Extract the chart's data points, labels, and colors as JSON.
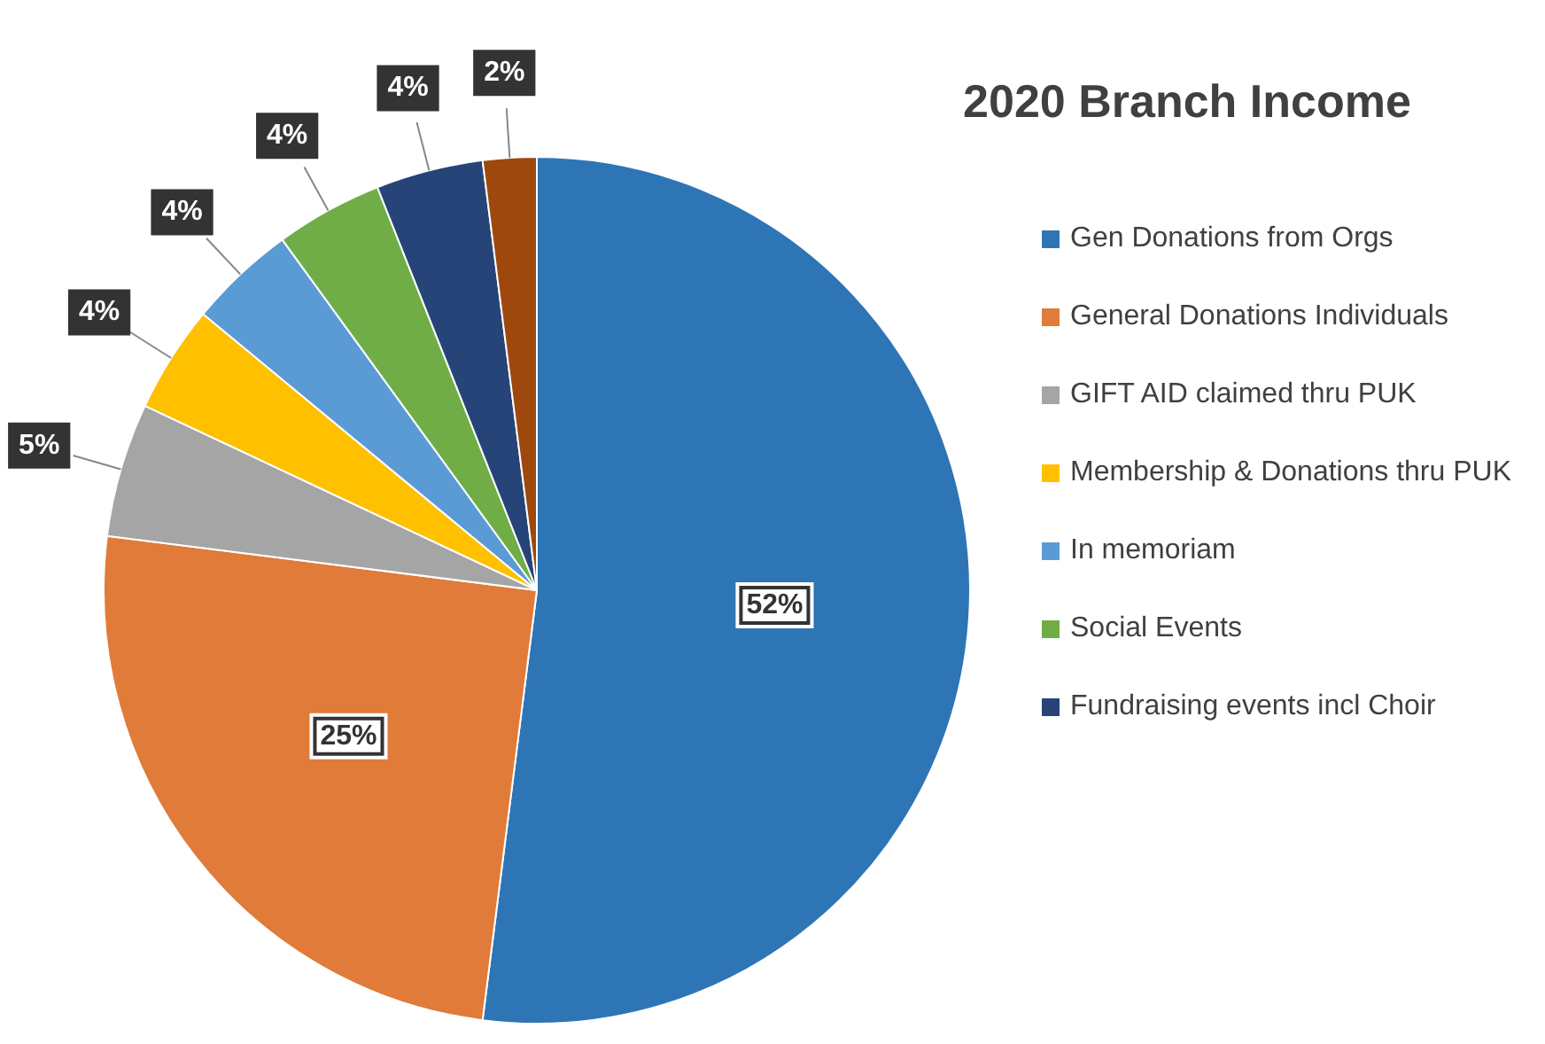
{
  "chart_data": {
    "type": "pie",
    "title": "2020 Branch Income",
    "categories": [
      "Gen Donations from Orgs",
      "General Donations Individuals",
      "GIFT AID claimed thru PUK",
      "Membership & Donations thru PUK",
      "In memoriam",
      "Social Events",
      "Fundraising events incl Choir",
      null
    ],
    "values": [
      52,
      25,
      5,
      4,
      4,
      4,
      4,
      2
    ],
    "value_labels": [
      "52%",
      "25%",
      "5%",
      "4%",
      "4%",
      "4%",
      "4%",
      "2%"
    ],
    "colors": [
      "#2e75b6",
      "#e07b39",
      "#a5a5a5",
      "#ffc000",
      "#5b9bd5",
      "#70ad47",
      "#264478",
      "#9e480e"
    ],
    "legend": "right"
  }
}
